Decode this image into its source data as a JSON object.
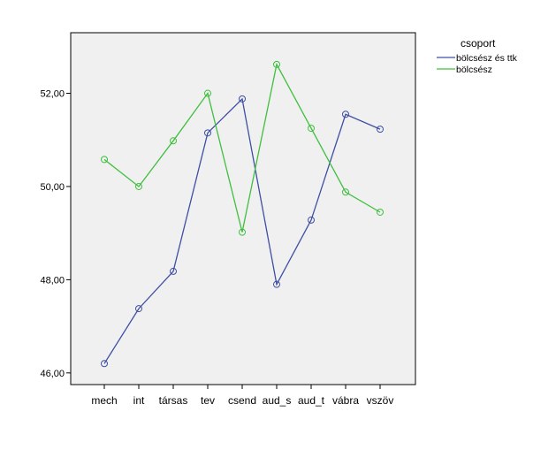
{
  "chart_data": {
    "type": "line",
    "title": "",
    "xlabel": "",
    "ylabel": "",
    "categories": [
      "mech",
      "int",
      "társas",
      "tev",
      "csend",
      "aud_s",
      "aud_t",
      "vábra",
      "vszöv"
    ],
    "ylim": [
      45.75,
      53.3
    ],
    "yticks": [
      46,
      48,
      50,
      52
    ],
    "ytick_labels": [
      "46,00",
      "48,00",
      "50,00",
      "52,00"
    ],
    "grid": false,
    "plot_background": "#f0f0f0",
    "legend": {
      "title": "csoport",
      "placement": "top-right, outside plot"
    },
    "series": [
      {
        "name": "bölcsész és ttk",
        "color": "#3e4fa3",
        "marker": "open-circle",
        "values": [
          46.2,
          47.38,
          48.18,
          51.15,
          51.88,
          47.9,
          49.28,
          51.55,
          51.23
        ]
      },
      {
        "name": "bölcsész",
        "color": "#3fbf3f",
        "marker": "open-circle",
        "values": [
          50.58,
          50.0,
          50.98,
          52.0,
          49.02,
          52.62,
          51.25,
          49.88,
          49.45
        ]
      }
    ]
  }
}
